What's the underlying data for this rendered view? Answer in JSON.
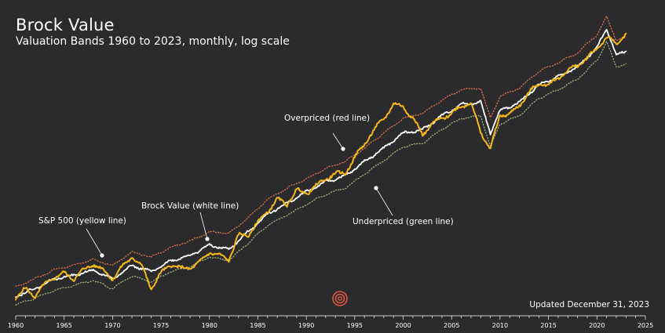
{
  "header": {
    "title": "Brock Value",
    "subtitle": "Valuation Bands 1960 to 2023, monthly, log scale"
  },
  "footer": {
    "updated": "Updated December 31, 2023"
  },
  "annotations": [
    {
      "id": "sp500",
      "text": "S&P 500 (yellow line)"
    },
    {
      "id": "brock",
      "text": "Brock Value (white line)"
    },
    {
      "id": "over",
      "text": "Overpriced (red line)"
    },
    {
      "id": "under",
      "text": "Underpriced (green line)"
    }
  ],
  "icons": {
    "logo": "concentric-circles-logo"
  },
  "colors": {
    "background": "#2b2b2d",
    "sp500": "#f5b81c",
    "brock": "#ffffff",
    "overpriced": "#dd6f4c",
    "underpriced": "#9bb07a",
    "logo": "#e0573f"
  },
  "chart_data": {
    "type": "line",
    "title": "Brock Value",
    "subtitle": "Valuation Bands 1960 to 2023, monthly, log scale",
    "xlabel": "",
    "ylabel": "",
    "y_scale": "log",
    "xlim": [
      1960,
      2025
    ],
    "ylim": [
      50,
      6000
    ],
    "grid": false,
    "x_ticks": [
      "1960",
      "1965",
      "1970",
      "1975",
      "1980",
      "1985",
      "1990",
      "1995",
      "2000",
      "2005",
      "2010",
      "2015",
      "2020",
      "2025"
    ],
    "series": [
      {
        "name": "S&P 500",
        "color": "#f5b81c",
        "style": "solid",
        "points": [
          [
            1960,
            58
          ],
          [
            1961,
            68
          ],
          [
            1962,
            60
          ],
          [
            1963,
            73
          ],
          [
            1964,
            82
          ],
          [
            1965,
            88
          ],
          [
            1966,
            80
          ],
          [
            1967,
            93
          ],
          [
            1968,
            102
          ],
          [
            1969,
            93
          ],
          [
            1970,
            80
          ],
          [
            1971,
            98
          ],
          [
            1972,
            115
          ],
          [
            1973,
            100
          ],
          [
            1974,
            68
          ],
          [
            1975,
            88
          ],
          [
            1976,
            102
          ],
          [
            1977,
            95
          ],
          [
            1978,
            96
          ],
          [
            1979,
            105
          ],
          [
            1980,
            125
          ],
          [
            1981,
            118
          ],
          [
            1982,
            110
          ],
          [
            1983,
            165
          ],
          [
            1984,
            165
          ],
          [
            1985,
            205
          ],
          [
            1986,
            245
          ],
          [
            1987,
            300
          ],
          [
            1988,
            275
          ],
          [
            1989,
            350
          ],
          [
            1990,
            330
          ],
          [
            1991,
            375
          ],
          [
            1992,
            420
          ],
          [
            1993,
            460
          ],
          [
            1994,
            460
          ],
          [
            1995,
            600
          ],
          [
            1996,
            750
          ],
          [
            1997,
            950
          ],
          [
            1998,
            1150
          ],
          [
            1999,
            1450
          ],
          [
            2000,
            1400
          ],
          [
            2001,
            1150
          ],
          [
            2002,
            880
          ],
          [
            2003,
            1050
          ],
          [
            2004,
            1150
          ],
          [
            2005,
            1250
          ],
          [
            2006,
            1400
          ],
          [
            2007,
            1500
          ],
          [
            2008,
            900
          ],
          [
            2009,
            700
          ],
          [
            2010,
            1200
          ],
          [
            2011,
            1250
          ],
          [
            2012,
            1400
          ],
          [
            2013,
            1800
          ],
          [
            2014,
            2000
          ],
          [
            2015,
            2050
          ],
          [
            2016,
            2200
          ],
          [
            2017,
            2600
          ],
          [
            2018,
            2700
          ],
          [
            2019,
            3200
          ],
          [
            2020,
            3600
          ],
          [
            2021,
            4500
          ],
          [
            2022,
            3900
          ],
          [
            2023,
            4700
          ]
        ]
      },
      {
        "name": "Brock Value",
        "color": "#ffffff",
        "style": "solid",
        "points": [
          [
            1960,
            60
          ],
          [
            1962,
            68
          ],
          [
            1964,
            80
          ],
          [
            1966,
            85
          ],
          [
            1968,
            92
          ],
          [
            1970,
            80
          ],
          [
            1972,
            100
          ],
          [
            1974,
            90
          ],
          [
            1976,
            108
          ],
          [
            1978,
            118
          ],
          [
            1980,
            140
          ],
          [
            1982,
            130
          ],
          [
            1984,
            175
          ],
          [
            1986,
            235
          ],
          [
            1988,
            280
          ],
          [
            1990,
            340
          ],
          [
            1992,
            400
          ],
          [
            1994,
            440
          ],
          [
            1996,
            560
          ],
          [
            1998,
            700
          ],
          [
            2000,
            900
          ],
          [
            2002,
            950
          ],
          [
            2004,
            1200
          ],
          [
            2006,
            1450
          ],
          [
            2008,
            1500
          ],
          [
            2009,
            900
          ],
          [
            2010,
            1300
          ],
          [
            2012,
            1500
          ],
          [
            2014,
            2000
          ],
          [
            2016,
            2300
          ],
          [
            2018,
            2700
          ],
          [
            2020,
            3700
          ],
          [
            2021,
            5100
          ],
          [
            2022,
            3300
          ],
          [
            2023,
            3500
          ]
        ]
      },
      {
        "name": "Overpriced",
        "color": "#dd6f4c",
        "style": "dotted",
        "points": [
          [
            1960,
            70
          ],
          [
            1962,
            80
          ],
          [
            1964,
            93
          ],
          [
            1966,
            100
          ],
          [
            1968,
            110
          ],
          [
            1970,
            100
          ],
          [
            1972,
            125
          ],
          [
            1974,
            115
          ],
          [
            1976,
            135
          ],
          [
            1978,
            150
          ],
          [
            1980,
            175
          ],
          [
            1982,
            170
          ],
          [
            1984,
            220
          ],
          [
            1986,
            300
          ],
          [
            1988,
            360
          ],
          [
            1990,
            420
          ],
          [
            1992,
            500
          ],
          [
            1994,
            560
          ],
          [
            1996,
            700
          ],
          [
            1998,
            900
          ],
          [
            2000,
            1150
          ],
          [
            2002,
            1250
          ],
          [
            2004,
            1550
          ],
          [
            2006,
            1850
          ],
          [
            2008,
            1900
          ],
          [
            2009,
            1150
          ],
          [
            2010,
            1650
          ],
          [
            2012,
            1900
          ],
          [
            2014,
            2500
          ],
          [
            2016,
            2900
          ],
          [
            2018,
            3400
          ],
          [
            2020,
            4600
          ],
          [
            2021,
            6200
          ],
          [
            2022,
            4200
          ],
          [
            2023,
            4500
          ]
        ]
      },
      {
        "name": "Underpriced",
        "color": "#9bb07a",
        "style": "dotted",
        "points": [
          [
            1960,
            52
          ],
          [
            1962,
            58
          ],
          [
            1964,
            66
          ],
          [
            1966,
            72
          ],
          [
            1968,
            78
          ],
          [
            1970,
            68
          ],
          [
            1972,
            84
          ],
          [
            1974,
            76
          ],
          [
            1976,
            90
          ],
          [
            1978,
            98
          ],
          [
            1980,
            115
          ],
          [
            1982,
            108
          ],
          [
            1984,
            145
          ],
          [
            1986,
            195
          ],
          [
            1988,
            230
          ],
          [
            1990,
            275
          ],
          [
            1992,
            325
          ],
          [
            1994,
            360
          ],
          [
            1996,
            455
          ],
          [
            1998,
            570
          ],
          [
            2000,
            720
          ],
          [
            2002,
            760
          ],
          [
            2004,
            960
          ],
          [
            2006,
            1150
          ],
          [
            2008,
            1200
          ],
          [
            2009,
            720
          ],
          [
            2010,
            1050
          ],
          [
            2012,
            1200
          ],
          [
            2014,
            1600
          ],
          [
            2016,
            1850
          ],
          [
            2018,
            2200
          ],
          [
            2020,
            3000
          ],
          [
            2021,
            4100
          ],
          [
            2022,
            2700
          ],
          [
            2023,
            2850
          ]
        ]
      }
    ]
  }
}
